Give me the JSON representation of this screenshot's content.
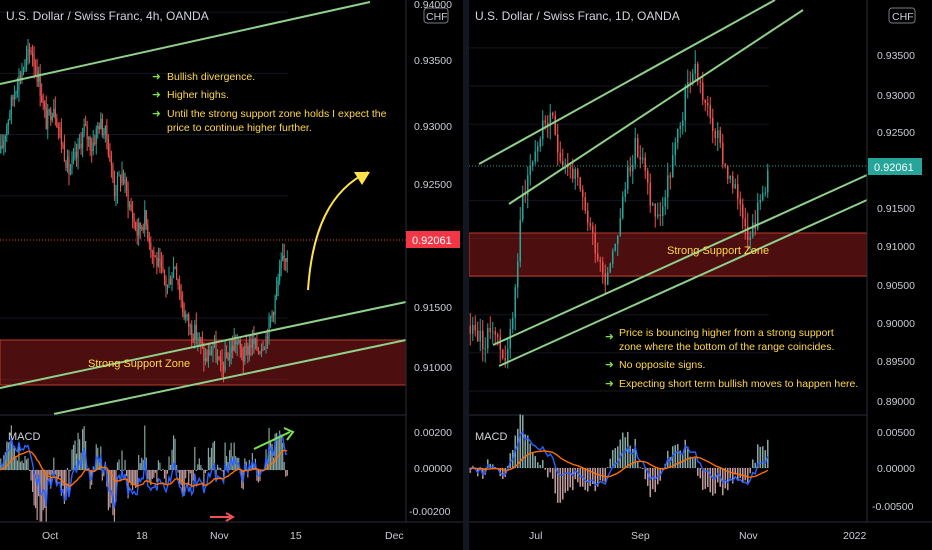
{
  "left": {
    "title": "U.S. Dollar / Swiss Franc, 4h, OANDA",
    "currency": "CHF",
    "price_labels": [
      "0.94000",
      "0.93500",
      "0.93000",
      "0.92500",
      "0.91500",
      "0.91000"
    ],
    "current_price": "0.92061",
    "macd_labels": [
      "0.00200",
      "0.00000",
      "-0.00200"
    ],
    "time_labels": [
      "Oct",
      "18",
      "Nov",
      "15",
      "Dec"
    ],
    "notes": [
      "Bullish divergence.",
      "Higher highs.",
      "Until the strong support zone holds I expect the",
      "price to continue higher further."
    ],
    "zone_label": "Strong Support Zone",
    "macd_label": "MACD"
  },
  "right": {
    "title": "U.S. Dollar / Swiss Franc, 1D, OANDA",
    "currency": "CHF",
    "price_labels": [
      "0.93500",
      "0.93000",
      "0.92500",
      "0.91500",
      "0.91000",
      "0.90500",
      "0.90000",
      "0.89500",
      "0.89000"
    ],
    "current_price": "0.92061",
    "macd_labels": [
      "0.00500",
      "0.00000",
      "-0.00500"
    ],
    "time_labels": [
      "Jul",
      "Sep",
      "Nov",
      "2022"
    ],
    "notes": [
      "Price is bouncing higher from a strong support",
      "zone where the bottom of the range coincides.",
      "No opposite signs.",
      "Expecting short term bullish moves to happen here."
    ],
    "zone_label": "Strong Support Zone",
    "macd_label": "MACD"
  },
  "colors": {
    "up": "#26a69a",
    "down": "#ef5350",
    "channel": "#8fd18a",
    "zone": "#8b1a1a",
    "note_text": "#ffd84a",
    "arrow": "#7be24a",
    "price_badge": "#f23645",
    "macd_line": "#2962ff",
    "signal_line": "#ff6d00"
  },
  "chart_data": [
    {
      "type": "candlestick",
      "title": "U.S. Dollar / Swiss Franc, 4h, OANDA",
      "y_ticks": [
        0.94,
        0.935,
        0.93,
        0.925,
        0.915,
        0.91
      ],
      "x_ticks": [
        "Oct",
        "18",
        "Nov",
        "15",
        "Dec"
      ],
      "ylim": [
        0.9075,
        0.9405
      ],
      "close": [
        0.9285,
        0.9315,
        0.934,
        0.9355,
        0.937,
        0.9345,
        0.931,
        0.9325,
        0.9295,
        0.927,
        0.9282,
        0.9305,
        0.929,
        0.931,
        0.9298,
        0.9255,
        0.9268,
        0.9242,
        0.922,
        0.9232,
        0.9205,
        0.919,
        0.9176,
        0.9195,
        0.9158,
        0.9142,
        0.9135,
        0.9115,
        0.9128,
        0.9108,
        0.912,
        0.9132,
        0.9118,
        0.913,
        0.9125,
        0.9135,
        0.916,
        0.9192,
        0.9206
      ],
      "current_price": 0.92061,
      "support_zone": [
        0.9088,
        0.9118
      ],
      "macd": {
        "y_ticks": [
          0.002,
          0.0,
          -0.002
        ],
        "ylim": [
          -0.0025,
          0.0025
        ]
      }
    },
    {
      "type": "candlestick",
      "title": "U.S. Dollar / Swiss Franc, 1D, OANDA",
      "y_ticks": [
        0.935,
        0.93,
        0.925,
        0.915,
        0.91,
        0.905,
        0.9,
        0.895,
        0.89
      ],
      "x_ticks": [
        "Jul",
        "Sep",
        "Nov",
        "2022"
      ],
      "ylim": [
        0.8875,
        0.9405
      ],
      "close": [
        0.8985,
        0.8975,
        0.896,
        0.899,
        0.8955,
        0.8945,
        0.9035,
        0.9155,
        0.9195,
        0.9225,
        0.9255,
        0.925,
        0.921,
        0.9195,
        0.918,
        0.9145,
        0.9115,
        0.908,
        0.905,
        0.9085,
        0.9125,
        0.919,
        0.922,
        0.92,
        0.915,
        0.9125,
        0.9155,
        0.9205,
        0.9245,
        0.9305,
        0.9325,
        0.9288,
        0.9255,
        0.923,
        0.9195,
        0.9165,
        0.915,
        0.911,
        0.9125,
        0.916,
        0.92
      ],
      "current_price": 0.92061,
      "support_zone": [
        0.9065,
        0.9118
      ],
      "macd": {
        "y_ticks": [
          0.005,
          0.0,
          -0.005
        ],
        "ylim": [
          -0.0065,
          0.0065
        ]
      }
    }
  ]
}
